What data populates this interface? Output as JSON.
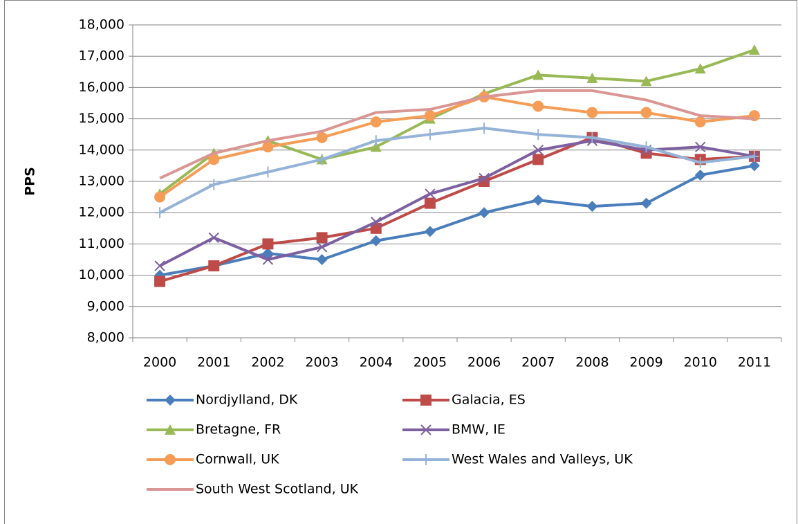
{
  "chart_data": {
    "type": "line",
    "y_label": "PPS",
    "categories": [
      "2000",
      "2001",
      "2002",
      "2003",
      "2004",
      "2005",
      "2006",
      "2007",
      "2008",
      "2009",
      "2010",
      "2011"
    ],
    "ylim": [
      8000,
      18000
    ],
    "yticks": [
      {
        "value": 8000,
        "label": "8,000"
      },
      {
        "value": 9000,
        "label": "9,000"
      },
      {
        "value": 10000,
        "label": "10,000"
      },
      {
        "value": 11000,
        "label": "11,000"
      },
      {
        "value": 12000,
        "label": "12,000"
      },
      {
        "value": 13000,
        "label": "13,000"
      },
      {
        "value": 14000,
        "label": "14,000"
      },
      {
        "value": 15000,
        "label": "15,000"
      },
      {
        "value": 16000,
        "label": "16,000"
      },
      {
        "value": 17000,
        "label": "17,000"
      },
      {
        "value": 18000,
        "label": "18,000"
      }
    ],
    "grid": true,
    "legend": "bottom",
    "series": [
      {
        "name": "Nordjylland, DK",
        "color": "#4a7ebb",
        "marker": "diamond",
        "values": [
          10000,
          10300,
          10700,
          10500,
          11100,
          11400,
          12000,
          12400,
          12200,
          12300,
          13200,
          13500
        ]
      },
      {
        "name": "Galacia, ES",
        "color": "#be4b48",
        "marker": "square",
        "values": [
          9800,
          10300,
          11000,
          11200,
          11500,
          12300,
          13000,
          13700,
          14400,
          13900,
          13700,
          13800
        ]
      },
      {
        "name": "Bretagne, FR",
        "color": "#98b954",
        "marker": "triangle",
        "values": [
          12600,
          13900,
          14300,
          13700,
          14100,
          15000,
          15800,
          16400,
          16300,
          16200,
          16600,
          17200
        ]
      },
      {
        "name": "BMW, IE",
        "color": "#7d60a0",
        "marker": "x",
        "values": [
          10300,
          11200,
          10500,
          10900,
          11700,
          12600,
          13100,
          14000,
          14300,
          14000,
          14100,
          13800
        ]
      },
      {
        "name": "Cornwall, UK",
        "color": "#f59d56",
        "marker": "circle",
        "values": [
          12500,
          13700,
          14100,
          14400,
          14900,
          15100,
          15700,
          15400,
          15200,
          15200,
          14900,
          15100
        ]
      },
      {
        "name": "West Wales and Valleys, UK",
        "color": "#95b3d7",
        "marker": "plus",
        "values": [
          12000,
          12900,
          13300,
          13700,
          14300,
          14500,
          14700,
          14500,
          14400,
          14100,
          13600,
          13800
        ]
      },
      {
        "name": "South West Scotland, UK",
        "color": "#d99694",
        "marker": "none",
        "values": [
          13100,
          13900,
          14300,
          14600,
          15200,
          15300,
          15700,
          15900,
          15900,
          15600,
          15100,
          15000
        ]
      }
    ]
  }
}
